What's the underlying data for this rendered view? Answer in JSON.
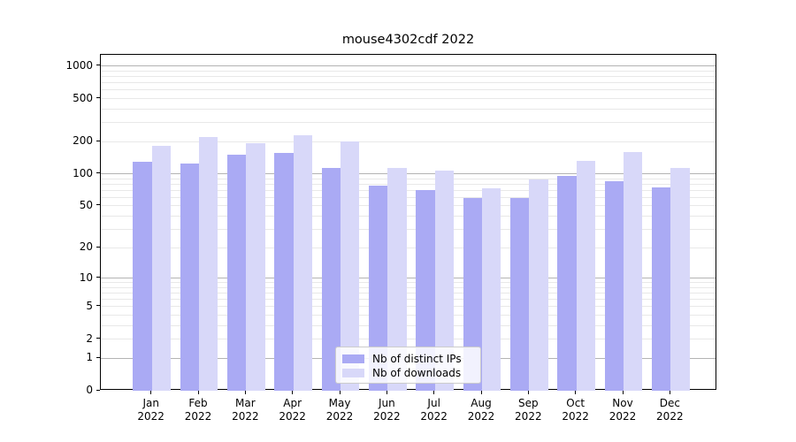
{
  "title": "mouse4302cdf 2022",
  "colors": {
    "ips_bar": "#aaaaf4",
    "downloads_bar": "#d8d8f9",
    "grid_major": "#b3b3b3",
    "grid_minor": "#e8e8e8",
    "axis": "#000000",
    "legend_border": "#cccccc"
  },
  "legend": {
    "entries": [
      {
        "label": "Nb of distinct IPs",
        "series": "ips"
      },
      {
        "label": "Nb of downloads",
        "series": "downloads"
      }
    ]
  },
  "chart_data": {
    "type": "bar",
    "title": "mouse4302cdf 2022",
    "categories": [
      "Jan 2022",
      "Feb 2022",
      "Mar 2022",
      "Apr 2022",
      "May 2022",
      "Jun 2022",
      "Jul 2022",
      "Aug 2022",
      "Sep 2022",
      "Oct 2022",
      "Nov 2022",
      "Dec 2022"
    ],
    "series": [
      {
        "name": "Nb of distinct IPs",
        "color": "#aaaaf4",
        "values": [
          130,
          124,
          151,
          156,
          114,
          78,
          70,
          60,
          59,
          95,
          86,
          75
        ]
      },
      {
        "name": "Nb of downloads",
        "color": "#d8d8f9",
        "values": [
          183,
          221,
          192,
          231,
          202,
          114,
          107,
          74,
          88,
          131,
          161,
          113
        ]
      }
    ],
    "xlabel": "",
    "ylabel": "",
    "yscale": "log1p",
    "ylim": [
      0,
      1260
    ],
    "yticks": [
      0,
      1,
      2,
      5,
      10,
      20,
      50,
      100,
      200,
      500,
      1000
    ],
    "grid_major_values": [
      1,
      10,
      100,
      1000
    ],
    "grid_minor_values": [
      2,
      3,
      4,
      5,
      6,
      7,
      8,
      9,
      20,
      30,
      40,
      50,
      60,
      70,
      80,
      90,
      200,
      300,
      400,
      500,
      600,
      700,
      800,
      900
    ],
    "grid": "horizontal",
    "legend_position": "inside-bottom-center"
  }
}
